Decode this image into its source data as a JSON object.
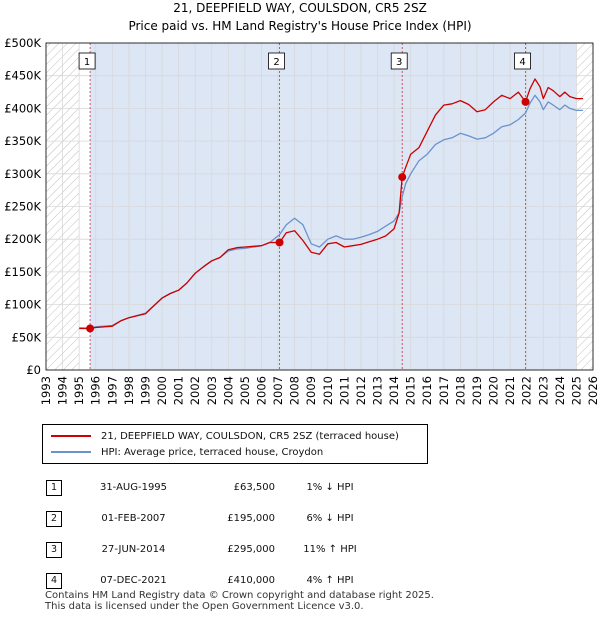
{
  "chart_data": {
    "type": "line",
    "title": "21, DEEPFIELD WAY, COULSDON, CR5 2SZ",
    "subtitle": "Price paid vs. HM Land Registry's House Price Index (HPI)",
    "xlim": [
      1993,
      2026
    ],
    "ylim": [
      0,
      500000
    ],
    "x_ticks": [
      1993,
      1994,
      1995,
      1996,
      1997,
      1998,
      1999,
      2000,
      2001,
      2002,
      2003,
      2004,
      2005,
      2006,
      2007,
      2008,
      2009,
      2010,
      2011,
      2012,
      2013,
      2014,
      2015,
      2016,
      2017,
      2018,
      2019,
      2020,
      2021,
      2022,
      2023,
      2024,
      2025,
      2026
    ],
    "y_ticks": [
      {
        "value": 0,
        "label": "£0"
      },
      {
        "value": 50000,
        "label": "£50K"
      },
      {
        "value": 100000,
        "label": "£100K"
      },
      {
        "value": 150000,
        "label": "£150K"
      },
      {
        "value": 200000,
        "label": "£200K"
      },
      {
        "value": 250000,
        "label": "£250K"
      },
      {
        "value": 300000,
        "label": "£300K"
      },
      {
        "value": 350000,
        "label": "£350K"
      },
      {
        "value": 400000,
        "label": "£400K"
      },
      {
        "value": 450000,
        "label": "£450K"
      },
      {
        "value": 500000,
        "label": "£500K"
      }
    ],
    "hatch_ranges": [
      [
        1993,
        1995.0
      ],
      [
        2025.0,
        2026
      ]
    ],
    "series": [
      {
        "name": "21, DEEPFIELD WAY, COULSDON, CR5 2SZ (terraced house)",
        "color": "#cc0000",
        "x": [
          1995.0,
          1995.66,
          1996.0,
          1997.0,
          1997.5,
          1998.0,
          1999.0,
          1999.5,
          2000.0,
          2000.5,
          2001.0,
          2001.5,
          2002.0,
          2002.5,
          2003.0,
          2003.5,
          2004.0,
          2004.5,
          2005.0,
          2006.0,
          2006.5,
          2007.09,
          2007.5,
          2008.0,
          2008.5,
          2009.0,
          2009.5,
          2010.0,
          2010.5,
          2011.0,
          2011.5,
          2012.0,
          2012.5,
          2013.0,
          2013.5,
          2014.0,
          2014.3,
          2014.49,
          2014.7,
          2015.0,
          2015.5,
          2016.0,
          2016.5,
          2017.0,
          2017.5,
          2018.0,
          2018.5,
          2019.0,
          2019.5,
          2020.0,
          2020.5,
          2021.0,
          2021.5,
          2021.93,
          2022.2,
          2022.5,
          2022.8,
          2023.0,
          2023.3,
          2023.6,
          2024.0,
          2024.3,
          2024.6,
          2025.0,
          2025.4
        ],
        "values": [
          63500,
          63500,
          65000,
          67000,
          75000,
          80000,
          86000,
          98000,
          110000,
          117000,
          122000,
          133000,
          148000,
          158000,
          167000,
          172000,
          184000,
          187000,
          188000,
          190000,
          195000,
          195000,
          210000,
          213000,
          198000,
          180000,
          177000,
          193000,
          195000,
          188000,
          190000,
          192000,
          196000,
          200000,
          205000,
          216000,
          240000,
          295000,
          310000,
          330000,
          340000,
          365000,
          390000,
          405000,
          407000,
          412000,
          406000,
          395000,
          398000,
          410000,
          420000,
          415000,
          425000,
          410000,
          430000,
          445000,
          433000,
          415000,
          432000,
          427000,
          418000,
          425000,
          418000,
          415000,
          415000
        ]
      },
      {
        "name": "HPI: Average price, terraced house, Croydon",
        "color": "#6a92cc",
        "x": [
          1995.0,
          1995.66,
          1996.0,
          1997.0,
          1997.5,
          1998.0,
          1999.0,
          1999.5,
          2000.0,
          2000.5,
          2001.0,
          2001.5,
          2002.0,
          2002.5,
          2003.0,
          2003.5,
          2004.0,
          2004.5,
          2005.0,
          2006.0,
          2006.5,
          2007.09,
          2007.5,
          2008.0,
          2008.5,
          2009.0,
          2009.5,
          2010.0,
          2010.5,
          2011.0,
          2011.5,
          2012.0,
          2012.5,
          2013.0,
          2013.5,
          2014.0,
          2014.3,
          2014.49,
          2014.7,
          2015.0,
          2015.5,
          2016.0,
          2016.5,
          2017.0,
          2017.5,
          2018.0,
          2018.5,
          2019.0,
          2019.5,
          2020.0,
          2020.5,
          2021.0,
          2021.5,
          2021.93,
          2022.2,
          2022.5,
          2022.8,
          2023.0,
          2023.3,
          2023.6,
          2024.0,
          2024.3,
          2024.6,
          2025.0,
          2025.4
        ],
        "values": [
          64500,
          64000,
          66000,
          68000,
          75000,
          80000,
          87000,
          98000,
          110000,
          117000,
          122000,
          133000,
          148000,
          158000,
          167000,
          172000,
          182000,
          185000,
          186000,
          190000,
          195000,
          207000,
          222000,
          232000,
          222000,
          193000,
          188000,
          200000,
          205000,
          200000,
          200000,
          203000,
          207000,
          212000,
          220000,
          228000,
          240000,
          265000,
          285000,
          300000,
          320000,
          330000,
          345000,
          352000,
          355000,
          362000,
          358000,
          353000,
          355000,
          362000,
          372000,
          375000,
          383000,
          393000,
          408000,
          420000,
          410000,
          398000,
          410000,
          405000,
          398000,
          405000,
          400000,
          397000,
          397000
        ]
      }
    ],
    "sales": [
      {
        "num": "1",
        "x": 1995.66,
        "value": 63500,
        "date": "31-AUG-1995",
        "price": "£63,500",
        "hpi": "1% ↓ HPI"
      },
      {
        "num": "2",
        "x": 2007.09,
        "value": 195000,
        "date": "01-FEB-2007",
        "price": "£195,000",
        "hpi": "6% ↓ HPI"
      },
      {
        "num": "3",
        "x": 2014.49,
        "value": 295000,
        "date": "27-JUN-2014",
        "price": "£295,000",
        "hpi": "11% ↑ HPI"
      },
      {
        "num": "4",
        "x": 2021.93,
        "value": 410000,
        "date": "07-DEC-2021",
        "price": "£410,000",
        "hpi": "4% ↑ HPI"
      }
    ]
  },
  "legend": {
    "item1": "21, DEEPFIELD WAY, COULSDON, CR5 2SZ (terraced house)",
    "item2": "HPI: Average price, terraced house, Croydon"
  },
  "footer": {
    "line1": "Contains HM Land Registry data © Crown copyright and database right 2025.",
    "line2": "This data is licensed under the Open Government Licence v3.0."
  },
  "colors": {
    "red": "#cc0000",
    "blue": "#6a92cc",
    "shade": "#dce6f5"
  }
}
